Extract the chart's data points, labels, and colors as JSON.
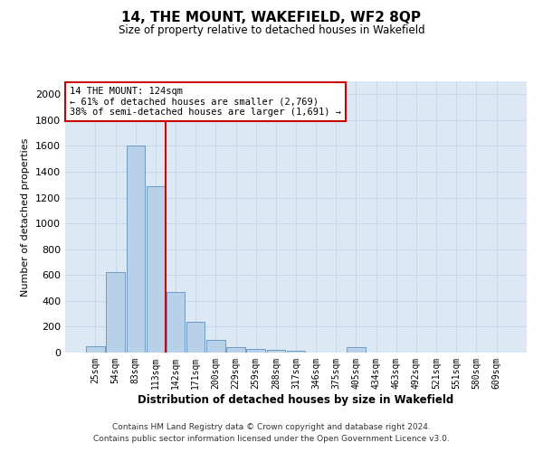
{
  "title": "14, THE MOUNT, WAKEFIELD, WF2 8QP",
  "subtitle": "Size of property relative to detached houses in Wakefield",
  "xlabel": "Distribution of detached houses by size in Wakefield",
  "ylabel": "Number of detached properties",
  "categories": [
    "25sqm",
    "54sqm",
    "83sqm",
    "113sqm",
    "142sqm",
    "171sqm",
    "200sqm",
    "229sqm",
    "259sqm",
    "288sqm",
    "317sqm",
    "346sqm",
    "375sqm",
    "405sqm",
    "434sqm",
    "463sqm",
    "492sqm",
    "521sqm",
    "551sqm",
    "580sqm",
    "609sqm"
  ],
  "values": [
    50,
    620,
    1600,
    1290,
    470,
    240,
    100,
    45,
    30,
    20,
    15,
    0,
    0,
    40,
    0,
    0,
    0,
    0,
    0,
    0,
    0
  ],
  "bar_color": "#b8d0e8",
  "bar_edge_color": "#6090c0",
  "line_color": "#cc0000",
  "line_x_index": 3,
  "annotation_text_line1": "14 THE MOUNT: 124sqm",
  "annotation_text_line2": "← 61% of detached houses are smaller (2,769)",
  "annotation_text_line3": "38% of semi-detached houses are larger (1,691) →",
  "annotation_box_color": "#ffffff",
  "annotation_box_edge_color": "#cc0000",
  "ylim": [
    0,
    2100
  ],
  "yticks": [
    0,
    200,
    400,
    600,
    800,
    1000,
    1200,
    1400,
    1600,
    1800,
    2000
  ],
  "grid_color": "#c8d8ea",
  "bg_color": "#dce9f5",
  "footer_line1": "Contains HM Land Registry data © Crown copyright and database right 2024.",
  "footer_line2": "Contains public sector information licensed under the Open Government Licence v3.0."
}
